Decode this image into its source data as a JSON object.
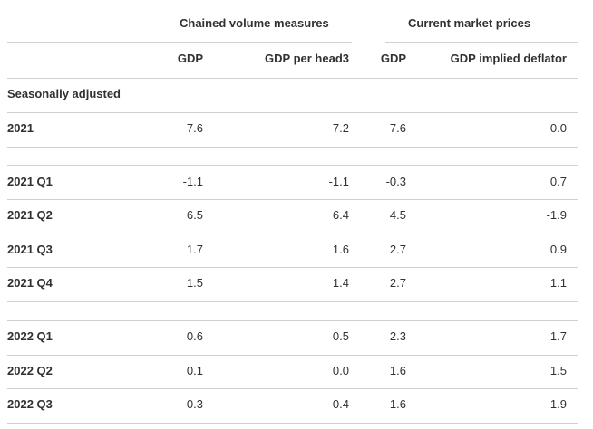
{
  "table": {
    "group_headers": {
      "chained": "Chained volume measures",
      "current": "Current market prices"
    },
    "column_headers": {
      "gdp_chained": "GDP",
      "gdp_per_head": "GDP per head3",
      "gdp_current": "GDP",
      "deflator": "GDP implied deflator"
    },
    "section_label": "Seasonally adjusted",
    "rows": [
      {
        "label": "2021",
        "gdp": "7.6",
        "gdp_per_head": "7.2",
        "gdp_current": "7.6",
        "deflator": "0.0"
      },
      {
        "label": "2021 Q1",
        "gdp": "-1.1",
        "gdp_per_head": "-1.1",
        "gdp_current": "-0.3",
        "deflator": "0.7"
      },
      {
        "label": "2021 Q2",
        "gdp": "6.5",
        "gdp_per_head": "6.4",
        "gdp_current": "4.5",
        "deflator": "-1.9"
      },
      {
        "label": "2021 Q3",
        "gdp": "1.7",
        "gdp_per_head": "1.6",
        "gdp_current": "2.7",
        "deflator": "0.9"
      },
      {
        "label": "2021 Q4",
        "gdp": "1.5",
        "gdp_per_head": "1.4",
        "gdp_current": "2.7",
        "deflator": "1.1"
      },
      {
        "label": "2022 Q1",
        "gdp": "0.6",
        "gdp_per_head": "0.5",
        "gdp_current": "2.3",
        "deflator": "1.7"
      },
      {
        "label": "2022 Q2",
        "gdp": "0.1",
        "gdp_per_head": "0.0",
        "gdp_current": "1.6",
        "deflator": "1.5"
      },
      {
        "label": "2022 Q3",
        "gdp": "-0.3",
        "gdp_per_head": "-0.4",
        "gdp_current": "1.6",
        "deflator": "1.9"
      }
    ]
  }
}
